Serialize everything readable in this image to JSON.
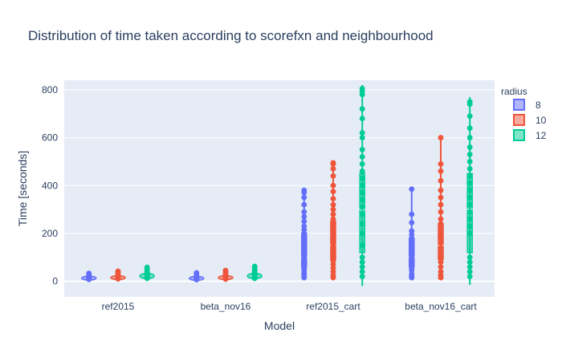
{
  "chart_data": {
    "type": "violin",
    "title": "Distribution of time taken according to scorefxn and neighbourhood",
    "xlabel": "Model",
    "ylabel": "Time [seconds]",
    "categories": [
      "ref2015",
      "beta_nov16",
      "ref2015_cart",
      "beta_nov16_cart"
    ],
    "ylim": [
      -65,
      840
    ],
    "yticks": [
      0,
      200,
      400,
      600,
      800
    ],
    "grid": true,
    "legend_title": "radius",
    "legend_position": "top-right",
    "series": [
      {
        "name": "8",
        "color": "#636efa",
        "groups": [
          {
            "min": 8,
            "max": 33,
            "q1": 10,
            "median": 13,
            "q3": 18,
            "points": [
              8,
              10,
              12,
              13,
              15,
              18,
              22,
              27,
              33
            ]
          },
          {
            "min": 7,
            "max": 35,
            "q1": 10,
            "median": 12,
            "q3": 17,
            "points": [
              7,
              9,
              11,
              12,
              14,
              17,
              22,
              28,
              35
            ]
          },
          {
            "min": 15,
            "max": 380,
            "q1": 60,
            "median": 100,
            "q3": 200,
            "points": [
              15,
              20,
              28,
              35,
              45,
              55,
              65,
              75,
              85,
              95,
              105,
              115,
              125,
              140,
              155,
              170,
              185,
              200,
              215,
              230,
              250,
              270,
              290,
              320,
              350,
              370,
              380
            ]
          },
          {
            "min": 15,
            "max": 385,
            "q1": 60,
            "median": 100,
            "q3": 180,
            "points": [
              15,
              20,
              30,
              45,
              55,
              65,
              75,
              85,
              95,
              105,
              115,
              125,
              135,
              150,
              165,
              180,
              195,
              210,
              245,
              280,
              385
            ]
          }
        ]
      },
      {
        "name": "10",
        "color": "#ef553b",
        "groups": [
          {
            "min": 10,
            "max": 42,
            "q1": 12,
            "median": 15,
            "q3": 22,
            "points": [
              10,
              12,
              14,
              15,
              18,
              22,
              28,
              35,
              42
            ]
          },
          {
            "min": 9,
            "max": 45,
            "q1": 12,
            "median": 15,
            "q3": 22,
            "points": [
              9,
              12,
              14,
              16,
              19,
              24,
              30,
              38,
              45
            ]
          },
          {
            "min": 15,
            "max": 495,
            "q1": 90,
            "median": 150,
            "q3": 250,
            "points": [
              15,
              25,
              40,
              55,
              70,
              85,
              100,
              115,
              130,
              145,
              160,
              175,
              190,
              205,
              220,
              240,
              260,
              280,
              300,
              320,
              345,
              375,
              400,
              440,
              470,
              490,
              495
            ]
          },
          {
            "min": 15,
            "max": 600,
            "q1": 90,
            "median": 150,
            "q3": 240,
            "points": [
              15,
              25,
              40,
              60,
              80,
              100,
              120,
              140,
              160,
              180,
              200,
              220,
              240,
              260,
              290,
              320,
              350,
              380,
              420,
              460,
              490,
              600
            ]
          }
        ]
      },
      {
        "name": "12",
        "color": "#00cc96",
        "groups": [
          {
            "min": 12,
            "max": 58,
            "q1": 16,
            "median": 22,
            "q3": 32,
            "points": [
              12,
              15,
              18,
              22,
              27,
              32,
              40,
              48,
              55,
              58
            ]
          },
          {
            "min": 12,
            "max": 62,
            "q1": 16,
            "median": 22,
            "q3": 32,
            "points": [
              12,
              15,
              18,
              22,
              27,
              32,
              40,
              48,
              56,
              62
            ]
          },
          {
            "min": -20,
            "max": 820,
            "q1": 120,
            "median": 300,
            "q3": 450,
            "points": [
              20,
              40,
              60,
              80,
              100,
              150,
              200,
              240,
              280,
              310,
              340,
              370,
              400,
              430,
              460,
              490,
              520,
              550,
              600,
              620,
              680,
              720,
              780,
              795,
              805
            ]
          },
          {
            "min": -15,
            "max": 770,
            "q1": 120,
            "median": 300,
            "q3": 450,
            "points": [
              20,
              40,
              60,
              80,
              100,
              200,
              230,
              260,
              290,
              320,
              350,
              380,
              410,
              440,
              470,
              500,
              530,
              560,
              600,
              640,
              690,
              740,
              750
            ]
          }
        ]
      }
    ]
  }
}
